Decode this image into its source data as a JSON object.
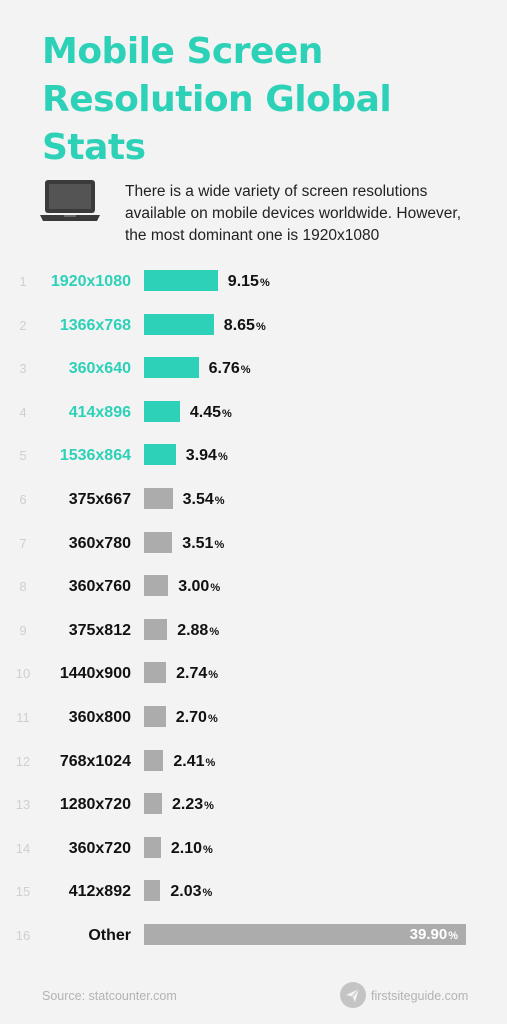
{
  "title": "Mobile Screen Resolution Global Stats",
  "description": "There is a wide variety of screen resolutions available on mobile devices worldwide. However, the most dominant one is 1920x1080",
  "icon": "laptop-icon",
  "colors": {
    "accent": "#2dd1b8",
    "bar_default": "#acacac",
    "background": "#f3f3f3"
  },
  "chart_data": {
    "type": "bar",
    "orientation": "horizontal",
    "value_unit": "%",
    "highlighted_top_count": 5,
    "categories": [
      "1920x1080",
      "1366x768",
      "360x640",
      "414x896",
      "1536x864",
      "375x667",
      "360x780",
      "360x760",
      "375x812",
      "1440x900",
      "360x800",
      "768x1024",
      "1280x720",
      "360x720",
      "412x892",
      "Other"
    ],
    "ranks": [
      "1",
      "2",
      "3",
      "4",
      "5",
      "6",
      "7",
      "8",
      "9",
      "10",
      "11",
      "12",
      "13",
      "14",
      "15",
      "16"
    ],
    "value_labels": [
      "9.15",
      "8.65",
      "6.76",
      "4.45",
      "3.94",
      "3.54",
      "3.51",
      "3.00",
      "2.88",
      "2.74",
      "2.70",
      "2.41",
      "2.23",
      "2.10",
      "2.03",
      "39.90"
    ],
    "values": [
      9.15,
      8.65,
      6.76,
      4.45,
      3.94,
      3.54,
      3.51,
      3.0,
      2.88,
      2.74,
      2.7,
      2.41,
      2.23,
      2.1,
      2.03,
      39.9
    ]
  },
  "footer": {
    "source": "Source: statcounter.com",
    "brand": "firstsiteguide.com",
    "brand_icon": "paper-plane-icon"
  }
}
